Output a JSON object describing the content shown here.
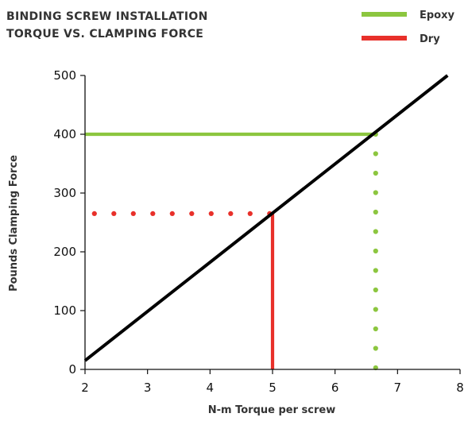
{
  "chart_data": {
    "type": "line",
    "title_lines": [
      "BINDING SCREW INSTALLATION",
      "TORQUE VS. CLAMPING FORCE"
    ],
    "xlabel": "N-m Torque per screw",
    "ylabel": "Pounds Clamping Force",
    "xlim": [
      2,
      8
    ],
    "ylim": [
      0,
      500
    ],
    "xticks": [
      2,
      3,
      4,
      5,
      6,
      7,
      8
    ],
    "yticks": [
      0,
      100,
      200,
      300,
      400,
      500
    ],
    "grid": false,
    "legend_position": "top-right",
    "series": [
      {
        "key": "relationship",
        "color": "#000000",
        "style": "solid",
        "x": [
          2,
          7.8
        ],
        "y": [
          15,
          500
        ]
      },
      {
        "key": "epoxy_horizontal",
        "legend": "epoxy",
        "color": "#8cc63f",
        "style": "solid",
        "x": [
          2,
          6.65
        ],
        "y": [
          400,
          400
        ]
      },
      {
        "key": "epoxy_vertical",
        "legend": "epoxy",
        "color": "#8cc63f",
        "style": "dotted",
        "x": [
          6.65,
          6.65
        ],
        "y": [
          400,
          0
        ]
      },
      {
        "key": "dry_horizontal",
        "legend": "dry",
        "color": "#e8302a",
        "style": "dotted",
        "x": [
          2.15,
          5
        ],
        "y": [
          265,
          265
        ]
      },
      {
        "key": "dry_vertical",
        "legend": "dry",
        "color": "#e8302a",
        "style": "solid",
        "x": [
          5,
          5
        ],
        "y": [
          265,
          0
        ]
      }
    ],
    "legend": [
      {
        "key": "epoxy",
        "label": "Epoxy",
        "color": "#8cc63f"
      },
      {
        "key": "dry",
        "label": "Dry",
        "color": "#e8302a"
      }
    ]
  }
}
